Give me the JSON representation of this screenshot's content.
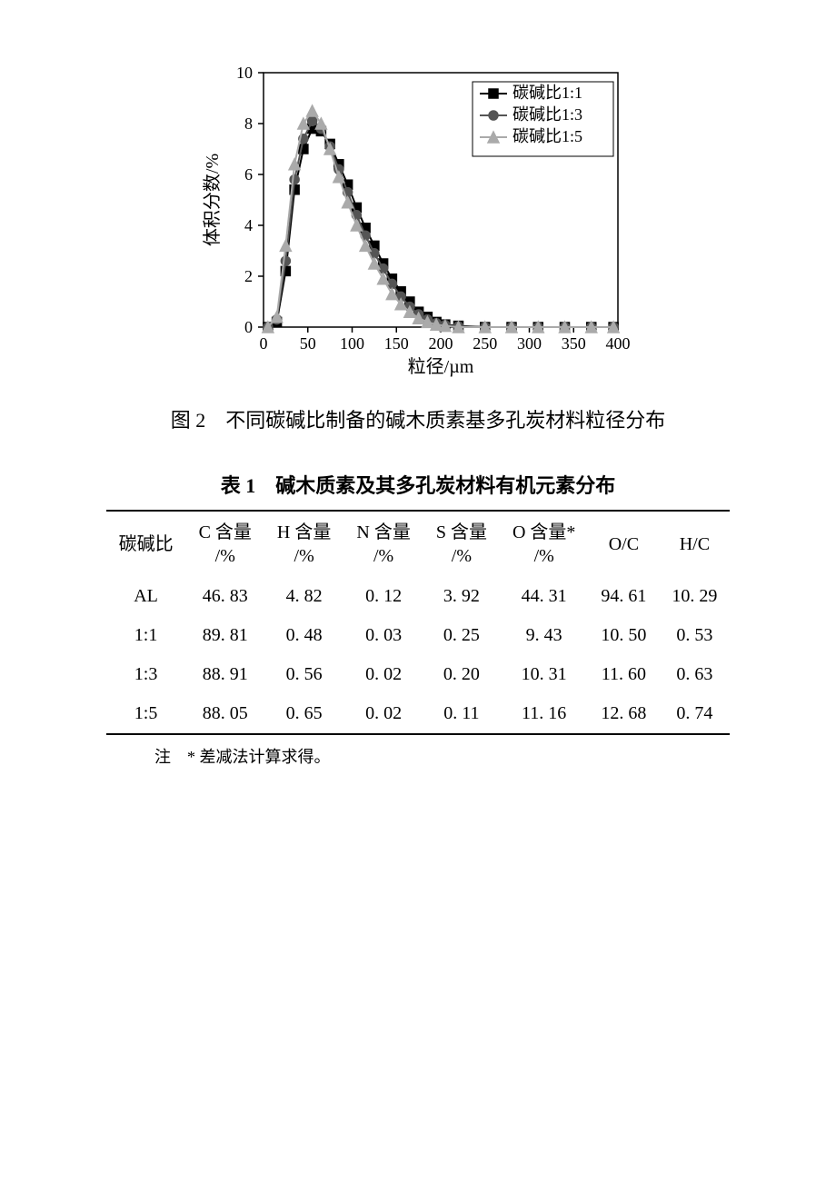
{
  "figure": {
    "caption": "图 2　不同碳碱比制备的碱木质素基多孔炭材料粒径分布",
    "chart": {
      "type": "line",
      "x_label": "粒径/µm",
      "y_label": "体积分数/%",
      "xlim": [
        0,
        400
      ],
      "ylim": [
        0,
        10
      ],
      "xticks": [
        0,
        50,
        100,
        150,
        200,
        250,
        300,
        350,
        400
      ],
      "yticks": [
        0,
        2,
        4,
        6,
        8,
        10
      ],
      "axis_color": "#000000",
      "background_color": "#ffffff",
      "tick_fontsize": 18,
      "label_fontsize": 20,
      "line_width": 2,
      "marker_size": 5,
      "legend": {
        "position": "top-right",
        "border_color": "#000000",
        "fontsize": 18,
        "items": [
          "碳碱比1:1",
          "碳碱比1:3",
          "碳碱比1:5"
        ]
      },
      "series": [
        {
          "name": "碳碱比1:1",
          "color": "#000000",
          "marker": "square",
          "x": [
            5,
            15,
            25,
            35,
            45,
            55,
            65,
            75,
            85,
            95,
            105,
            115,
            125,
            135,
            145,
            155,
            165,
            175,
            185,
            195,
            205,
            220,
            250,
            280,
            310,
            340,
            370,
            395
          ],
          "y": [
            0,
            0.2,
            2.2,
            5.4,
            7.0,
            7.8,
            7.7,
            7.2,
            6.4,
            5.6,
            4.7,
            3.9,
            3.2,
            2.5,
            1.9,
            1.4,
            1.0,
            0.6,
            0.4,
            0.2,
            0.1,
            0.05,
            0,
            0,
            0,
            0,
            0,
            0
          ]
        },
        {
          "name": "碳碱比1:3",
          "color": "#555555",
          "marker": "circle",
          "x": [
            5,
            15,
            25,
            35,
            45,
            55,
            65,
            75,
            85,
            95,
            105,
            115,
            125,
            135,
            145,
            155,
            165,
            175,
            185,
            195,
            205,
            220,
            250,
            280,
            310,
            340,
            370,
            395
          ],
          "y": [
            0,
            0.3,
            2.6,
            5.8,
            7.4,
            8.1,
            7.8,
            7.1,
            6.2,
            5.3,
            4.4,
            3.6,
            2.9,
            2.3,
            1.7,
            1.2,
            0.8,
            0.5,
            0.3,
            0.15,
            0.08,
            0.03,
            0,
            0,
            0,
            0,
            0,
            0
          ]
        },
        {
          "name": "碳碱比1:5",
          "color": "#aaaaaa",
          "marker": "triangle",
          "x": [
            5,
            15,
            25,
            35,
            45,
            55,
            65,
            75,
            85,
            95,
            105,
            115,
            125,
            135,
            145,
            155,
            165,
            175,
            185,
            195,
            205,
            220,
            250,
            280,
            310,
            340,
            370,
            395
          ],
          "y": [
            0,
            0.4,
            3.2,
            6.4,
            8.0,
            8.5,
            8.0,
            7.0,
            5.9,
            4.9,
            4.0,
            3.2,
            2.5,
            1.9,
            1.3,
            0.9,
            0.6,
            0.35,
            0.2,
            0.1,
            0.05,
            0,
            0,
            0,
            0,
            0,
            0,
            0
          ]
        }
      ]
    }
  },
  "table": {
    "caption": "表 1　碱木质素及其多孔炭材料有机元素分布",
    "note": "注　* 差减法计算求得。",
    "columns": [
      {
        "top": "碳碱比",
        "bottom": ""
      },
      {
        "top": "C 含量",
        "bottom": "/%"
      },
      {
        "top": "H 含量",
        "bottom": "/%"
      },
      {
        "top": "N 含量",
        "bottom": "/%"
      },
      {
        "top": "S 含量",
        "bottom": "/%"
      },
      {
        "top": "O 含量*",
        "bottom": "/%"
      },
      {
        "top": "O/C",
        "bottom": ""
      },
      {
        "top": "H/C",
        "bottom": ""
      }
    ],
    "rows": [
      [
        "AL",
        "46. 83",
        "4. 82",
        "0. 12",
        "3. 92",
        "44. 31",
        "94. 61",
        "10. 29"
      ],
      [
        "1:1",
        "89. 81",
        "0. 48",
        "0. 03",
        "0. 25",
        "9. 43",
        "10. 50",
        "0. 53"
      ],
      [
        "1:3",
        "88. 91",
        "0. 56",
        "0. 02",
        "0. 20",
        "10. 31",
        "11. 60",
        "0. 63"
      ],
      [
        "1:5",
        "88. 05",
        "0. 65",
        "0. 02",
        "0. 11",
        "11. 16",
        "12. 68",
        "0. 74"
      ]
    ]
  }
}
